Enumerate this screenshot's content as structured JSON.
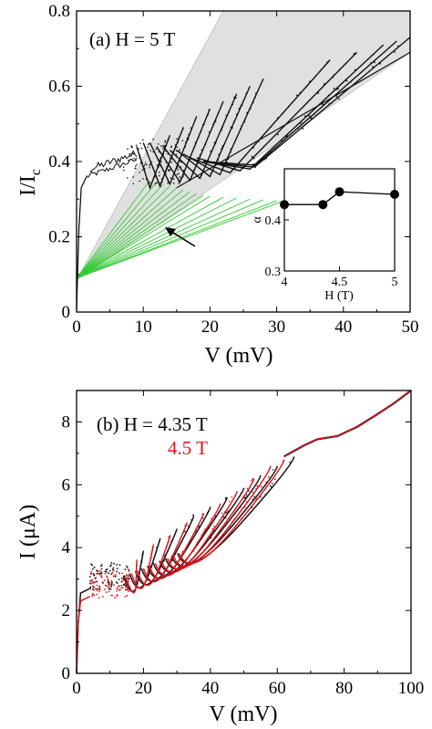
{
  "chart_data": [
    {
      "type": "line",
      "panel": "(a)",
      "annotation": "(a) H = 5 T",
      "xlabel": "V (mV)",
      "ylabel_main": "I/I",
      "ylabel_sub": "c",
      "xlim": [
        0,
        50
      ],
      "ylim": [
        0,
        0.8
      ],
      "xticks": [
        "0",
        "10",
        "20",
        "30",
        "40",
        "50"
      ],
      "yticks": [
        "0",
        "0.2",
        "0.4",
        "0.6",
        "0.8"
      ],
      "shaded_wedge": {
        "color": "#e0e0e0",
        "apex": [
          0,
          0.085
        ],
        "upper_end": [
          22,
          0.8
        ],
        "lower_end": [
          50,
          0.69
        ]
      },
      "fit_lines": {
        "color": "#33cc33",
        "origin": [
          0,
          0.09
        ],
        "endpoints": [
          [
            11,
            0.35
          ],
          [
            12,
            0.345
          ],
          [
            13,
            0.34
          ],
          [
            14,
            0.335
          ],
          [
            15,
            0.33
          ],
          [
            16,
            0.325
          ],
          [
            17,
            0.32
          ],
          [
            18,
            0.315
          ],
          [
            19,
            0.31
          ],
          [
            20,
            0.308
          ],
          [
            22,
            0.305
          ],
          [
            24,
            0.303
          ],
          [
            26,
            0.3
          ],
          [
            28,
            0.298
          ],
          [
            30,
            0.296
          ],
          [
            31,
            0.295
          ]
        ]
      },
      "branches": {
        "color": "#111111",
        "starts": [
          [
            9,
            0.44
          ],
          [
            10,
            0.45
          ],
          [
            11,
            0.45
          ],
          [
            12,
            0.44
          ],
          [
            13,
            0.44
          ],
          [
            14,
            0.43
          ],
          [
            15,
            0.43
          ],
          [
            16,
            0.42
          ],
          [
            17,
            0.41
          ],
          [
            18,
            0.41
          ],
          [
            19,
            0.4
          ]
        ],
        "ends": [
          [
            14,
            0.47
          ],
          [
            16,
            0.49
          ],
          [
            18,
            0.52
          ],
          [
            20,
            0.54
          ],
          [
            22,
            0.56
          ],
          [
            24,
            0.58
          ],
          [
            26,
            0.6
          ],
          [
            28,
            0.62
          ],
          [
            38,
            0.67
          ],
          [
            42,
            0.69
          ],
          [
            46,
            0.71
          ],
          [
            48,
            0.72
          ],
          [
            50,
            0.73
          ]
        ],
        "envelope_low": [
          [
            15,
            0.33
          ],
          [
            50,
            0.69
          ]
        ]
      },
      "inset": {
        "type": "scatter",
        "xlabel": "H (T)",
        "ylabel": "α",
        "xlim": [
          4,
          5
        ],
        "ylim": [
          0.3,
          0.5
        ],
        "xticks": [
          "4",
          "4.5",
          "5"
        ],
        "yticks": [
          "0.3",
          "0.4"
        ],
        "x": [
          4.0,
          4.35,
          4.5,
          5.0
        ],
        "y": [
          0.43,
          0.43,
          0.455,
          0.45
        ]
      }
    },
    {
      "type": "line",
      "panel": "(b)",
      "annotation": "(b) H = 4.35 T",
      "xlabel": "V (mV)",
      "ylabel": "I (μA)",
      "xlim": [
        0,
        100
      ],
      "ylim": [
        0,
        9
      ],
      "xticks": [
        "0",
        "20",
        "40",
        "60",
        "80",
        "100"
      ],
      "yticks": [
        "0",
        "2",
        "4",
        "6",
        "8"
      ],
      "series": [
        {
          "name": "H = 4.35 T",
          "color": "#111111",
          "branch_ends": [
            [
              20,
              3.9
            ],
            [
              25,
              4.3
            ],
            [
              30,
              4.6
            ],
            [
              35,
              5.0
            ],
            [
              40,
              5.3
            ],
            [
              45,
              5.6
            ],
            [
              50,
              5.9
            ],
            [
              55,
              6.3
            ],
            [
              60,
              6.6
            ],
            [
              65,
              6.9
            ]
          ]
        },
        {
          "name": "4.5 T",
          "color": "#e0141c",
          "branch_ends": [
            [
              18,
              3.6
            ],
            [
              23,
              4.1
            ],
            [
              28,
              4.4
            ],
            [
              33,
              4.8
            ],
            [
              38,
              5.1
            ],
            [
              43,
              5.4
            ],
            [
              48,
              5.8
            ],
            [
              53,
              6.2
            ],
            [
              58,
              6.6
            ],
            [
              62,
              6.8
            ]
          ]
        }
      ],
      "common_curve": {
        "x": [
          62,
          68,
          72,
          78,
          84,
          90,
          95,
          100
        ],
        "y": [
          6.9,
          7.25,
          7.45,
          7.55,
          7.85,
          8.25,
          8.6,
          9.0
        ]
      }
    }
  ],
  "panel_a": {
    "annotation": "(a) H = 5 T",
    "xlabel": "V (mV)",
    "ylabel_main": "I/I",
    "ylabel_sub": "c",
    "inset_xlabel": "H (T)",
    "inset_ylabel": "α"
  },
  "panel_b": {
    "annotation_black": "(b) H = 4.35 T",
    "annotation_red": "4.5 T",
    "xlabel": "V (mV)",
    "ylabel": "I (μA)"
  }
}
